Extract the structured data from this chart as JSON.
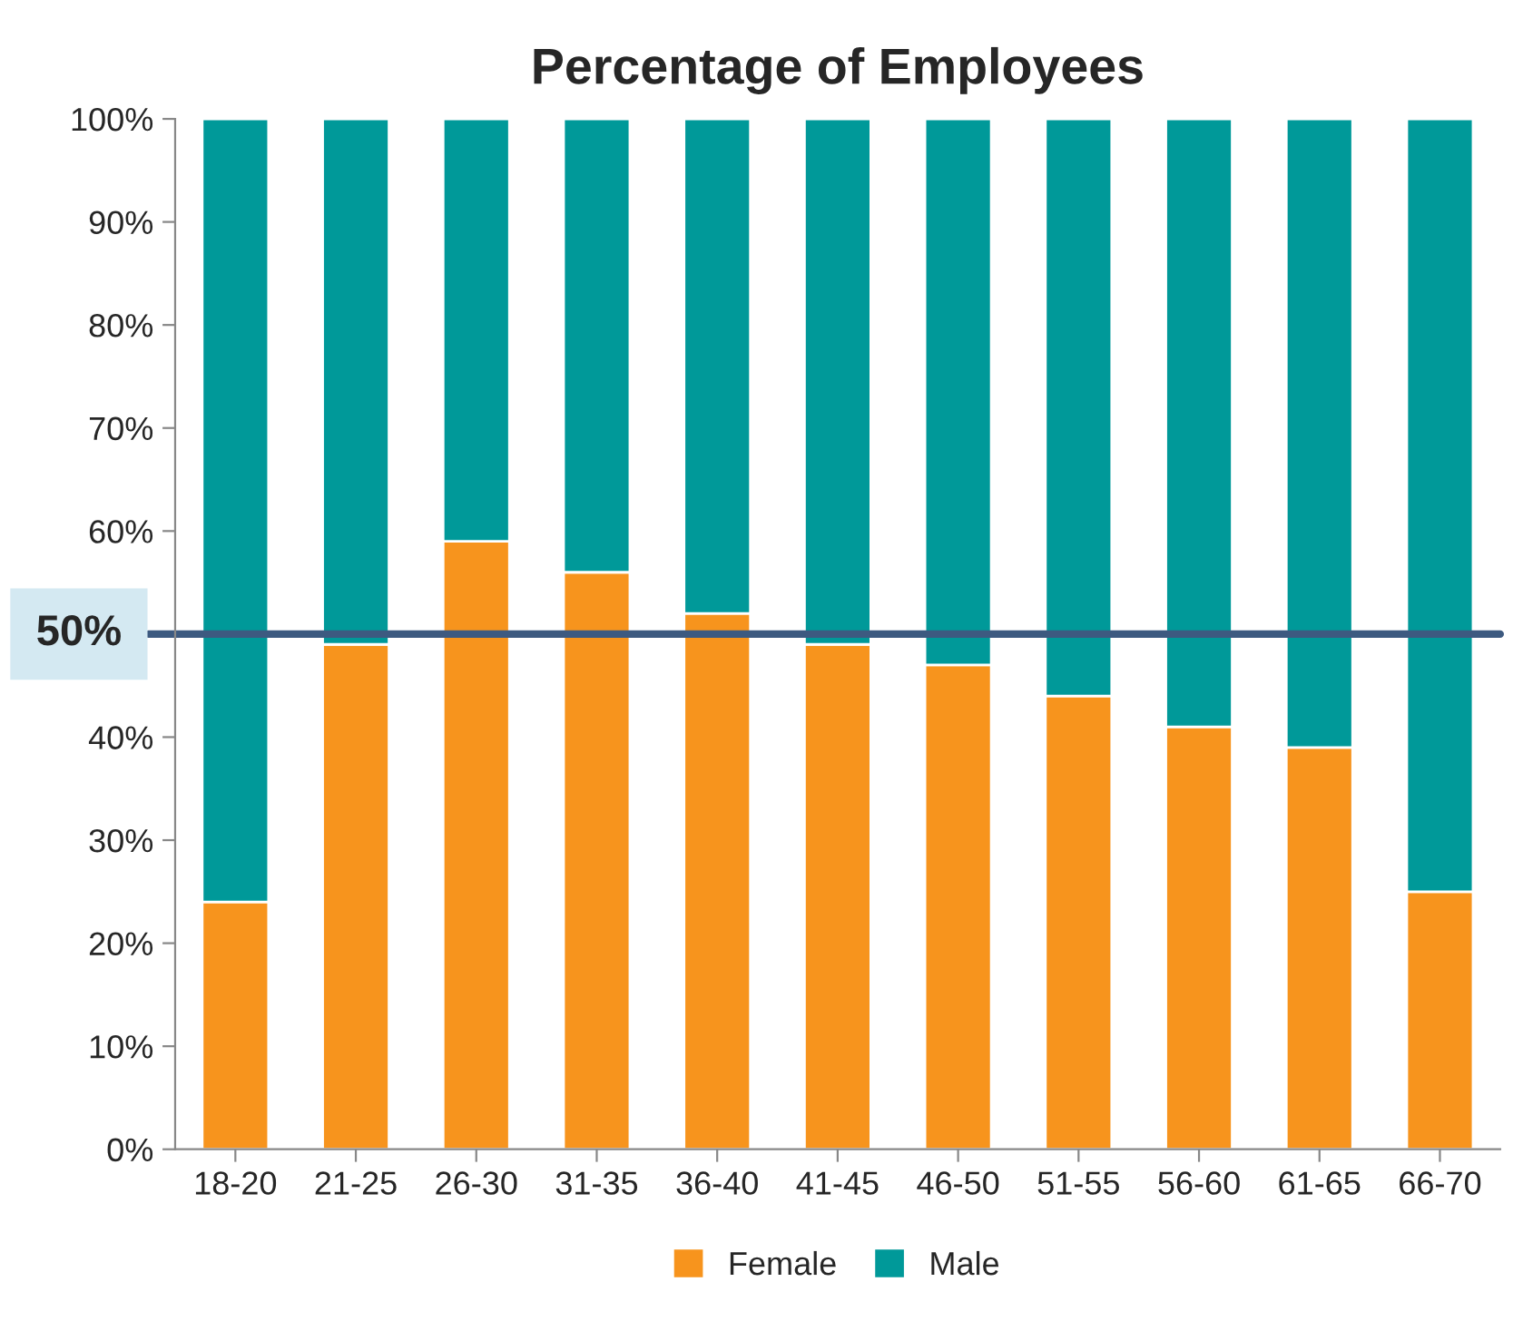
{
  "chart_data": {
    "type": "bar",
    "title": "Percentage of Employees",
    "categories": [
      "18-20",
      "21-25",
      "26-30",
      "31-35",
      "36-40",
      "41-45",
      "46-50",
      "51-55",
      "56-60",
      "61-65",
      "66-70"
    ],
    "stacked": true,
    "series": [
      {
        "name": "Female",
        "color": "#f7941d",
        "values": [
          24,
          49,
          59,
          56,
          52,
          49,
          47,
          44,
          41,
          39,
          25
        ]
      },
      {
        "name": "Male",
        "color": "#009999",
        "values": [
          76,
          51,
          41,
          44,
          48,
          51,
          53,
          56,
          59,
          61,
          75
        ]
      }
    ],
    "ylim": [
      0,
      100
    ],
    "yticks": [
      {
        "value": 0,
        "label": "0%"
      },
      {
        "value": 10,
        "label": "10%"
      },
      {
        "value": 20,
        "label": "20%"
      },
      {
        "value": 30,
        "label": "30%"
      },
      {
        "value": 40,
        "label": "40%"
      },
      {
        "value": 50,
        "label": null
      },
      {
        "value": 60,
        "label": "60%"
      },
      {
        "value": 70,
        "label": "70%"
      },
      {
        "value": 80,
        "label": "80%"
      },
      {
        "value": 90,
        "label": "90%"
      },
      {
        "value": 100,
        "label": "100%"
      }
    ],
    "ref_lines": [
      {
        "axis": "y",
        "value": 50,
        "label": "50%",
        "color": "#3d5a80"
      }
    ],
    "grid": false,
    "legend": "bottom"
  }
}
